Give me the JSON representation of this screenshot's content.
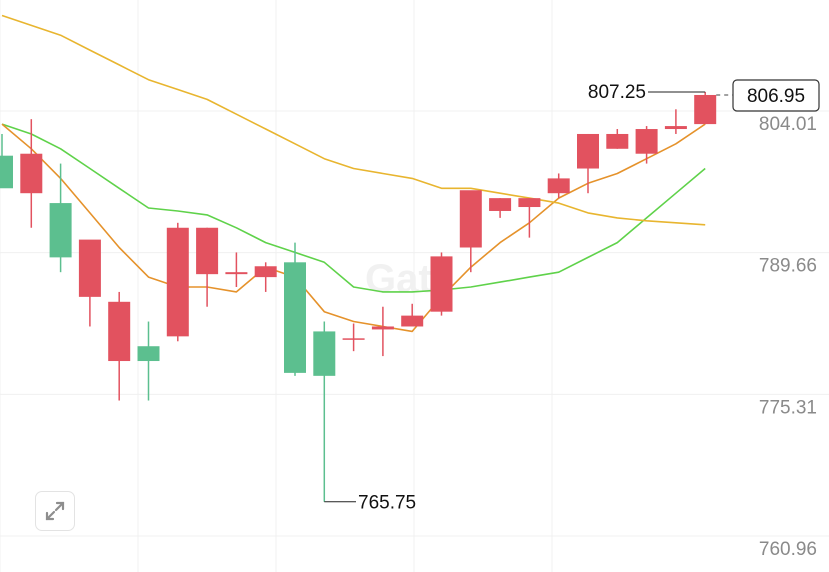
{
  "chart_data": {
    "type": "candlestick",
    "y_axis": {
      "ticks": [
        760.96,
        775.31,
        789.66,
        804.01
      ],
      "tick_labels": [
        "760.96",
        "775.31",
        "789.66",
        "804.01"
      ],
      "range": [
        760.0,
        818.0
      ]
    },
    "grid": true,
    "candles": [
      {
        "o": 800.8,
        "h": 803.0,
        "l": 798.0,
        "c": 797.5
      },
      {
        "o": 797.0,
        "h": 804.5,
        "l": 793.5,
        "c": 801.0
      },
      {
        "o": 796.0,
        "h": 800.0,
        "l": 789.0,
        "c": 790.5
      },
      {
        "o": 786.5,
        "h": 792.0,
        "l": 783.5,
        "c": 792.3
      },
      {
        "o": 780.0,
        "h": 787.0,
        "l": 776.0,
        "c": 786.0
      },
      {
        "o": 781.5,
        "h": 784.0,
        "l": 776.0,
        "c": 780.0
      },
      {
        "o": 782.5,
        "h": 794.0,
        "l": 782.0,
        "c": 793.5
      },
      {
        "o": 788.8,
        "h": 793.5,
        "l": 785.5,
        "c": 793.5
      },
      {
        "o": 788.8,
        "h": 791.0,
        "l": 787.5,
        "c": 789.0
      },
      {
        "o": 788.5,
        "h": 790.0,
        "l": 787.0,
        "c": 789.6
      },
      {
        "o": 790.0,
        "h": 792.0,
        "l": 778.5,
        "c": 778.8
      },
      {
        "o": 783.0,
        "h": 784.0,
        "l": 765.75,
        "c": 778.5
      },
      {
        "o": 782.3,
        "h": 783.8,
        "l": 781.0,
        "c": 782.3
      },
      {
        "o": 783.2,
        "h": 785.5,
        "l": 780.5,
        "c": 783.5
      },
      {
        "o": 783.5,
        "h": 785.8,
        "l": 783.5,
        "c": 784.6
      },
      {
        "o": 785.0,
        "h": 791.0,
        "l": 784.6,
        "c": 790.6
      },
      {
        "o": 791.5,
        "h": 797.0,
        "l": 789.0,
        "c": 797.3
      },
      {
        "o": 795.2,
        "h": 796.5,
        "l": 794.5,
        "c": 796.5
      },
      {
        "o": 795.6,
        "h": 796.5,
        "l": 792.5,
        "c": 796.5
      },
      {
        "o": 797.0,
        "h": 799.0,
        "l": 796.5,
        "c": 798.5
      },
      {
        "o": 799.5,
        "h": 803.0,
        "l": 797.0,
        "c": 803.0
      },
      {
        "o": 801.5,
        "h": 803.5,
        "l": 801.5,
        "c": 803.0
      },
      {
        "o": 801.0,
        "h": 803.8,
        "l": 800.0,
        "c": 803.5
      },
      {
        "o": 803.5,
        "h": 805.5,
        "l": 803.0,
        "c": 803.8
      },
      {
        "o": 804.0,
        "h": 807.25,
        "l": 804.0,
        "c": 806.95
      }
    ],
    "moving_averages": [
      {
        "color": "#5fd24a",
        "values": [
          804.0,
          803.0,
          801.5,
          799.5,
          797.5,
          795.5,
          795.2,
          794.8,
          793.5,
          792.0,
          791.0,
          790.0,
          787.5,
          787.0,
          787.0,
          787.2,
          787.5,
          788.0,
          788.5,
          789.0,
          790.5,
          792.0,
          794.5,
          797.0,
          799.5
        ]
      },
      {
        "color": "#e5922b",
        "values": [
          804.0,
          801.5,
          798.5,
          795.0,
          791.5,
          788.5,
          787.5,
          787.5,
          787.0,
          789.5,
          788.5,
          785.0,
          784.0,
          783.5,
          783.0,
          786.5,
          789.5,
          792.0,
          794.0,
          796.5,
          798.0,
          799.0,
          800.5,
          802.0,
          804.0
        ]
      },
      {
        "color": "#e8b52f",
        "values": [
          815.0,
          814.0,
          813.0,
          811.5,
          810.0,
          808.5,
          807.5,
          806.5,
          805.0,
          803.5,
          802.0,
          800.5,
          799.5,
          799.0,
          798.5,
          797.5,
          797.5,
          797.0,
          796.5,
          796.0,
          795.0,
          794.5,
          794.2,
          794.0,
          793.8
        ]
      }
    ],
    "annotations": {
      "high": {
        "value": 807.25,
        "label": "807.25"
      },
      "low": {
        "value": 765.75,
        "label": "765.75"
      },
      "last": {
        "value": 806.95,
        "label": "806.95"
      }
    },
    "colors": {
      "up": "#e2525f",
      "down": "#5cbf8f",
      "grid": "#f0f0f0",
      "axis_text": "#8a8a8a"
    }
  },
  "watermark": {
    "text": "Gate"
  },
  "expand_button": {
    "icon": "expand-arrows-icon"
  }
}
